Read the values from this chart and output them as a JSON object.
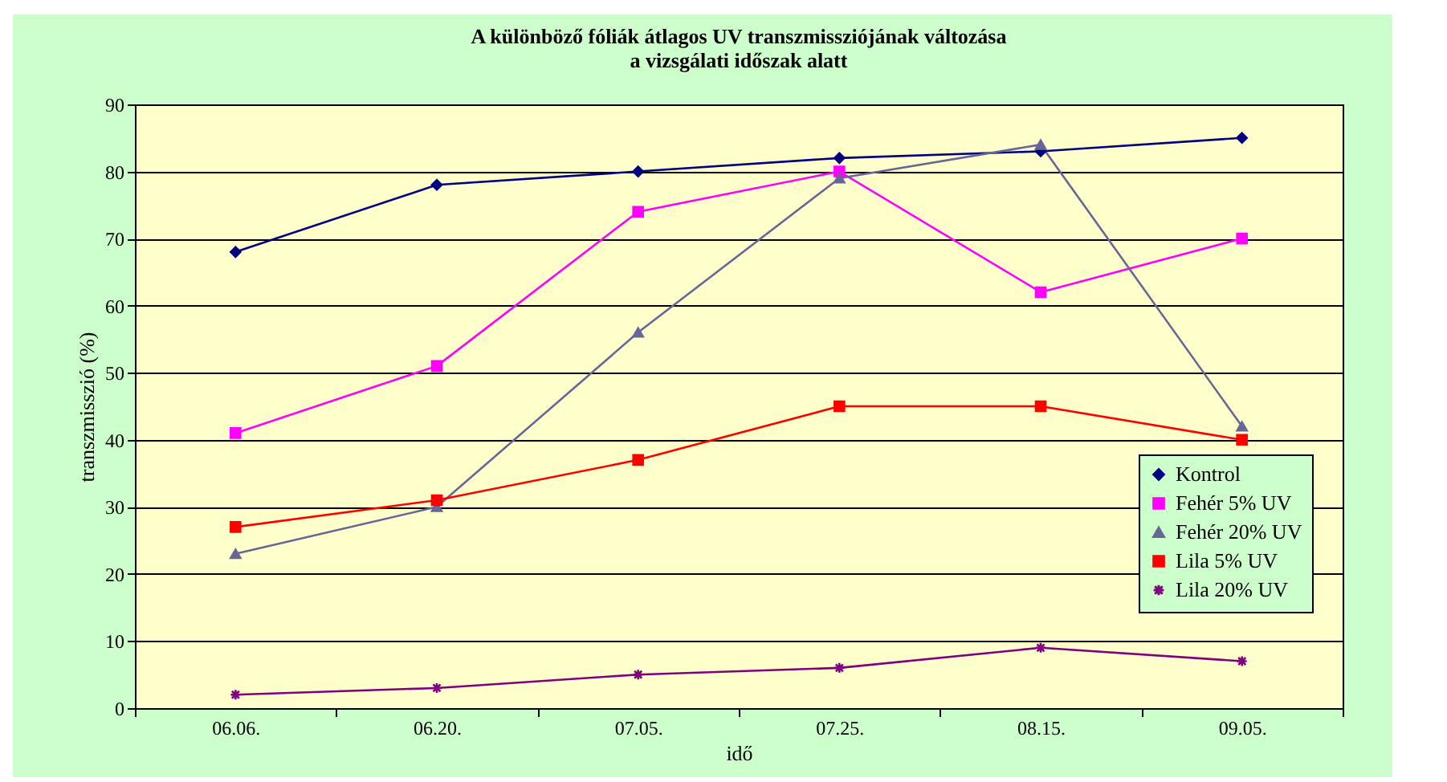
{
  "chart_data": {
    "type": "line",
    "title": "A különböző fóliák átlagos UV transzmissziójának változása\na vizsgálati időszak alatt",
    "xlabel": "idő",
    "ylabel": "transzmisszió (%)",
    "categories": [
      "06.06.",
      "06.20.",
      "07.05.",
      "07.25.",
      "08.15.",
      "09.05."
    ],
    "ylim": [
      0,
      90
    ],
    "yticks": [
      0,
      10,
      20,
      30,
      40,
      50,
      60,
      70,
      80,
      90
    ],
    "grid": "y",
    "legend": "bottom right",
    "line_style": "solid",
    "series": [
      {
        "name": "Kontrol",
        "color": "#000080",
        "marker": "diamond",
        "values": [
          68,
          78,
          80,
          82,
          83,
          85
        ]
      },
      {
        "name": "Fehér 5% UV",
        "color": "#ff00ff",
        "marker": "square",
        "values": [
          41,
          51,
          74,
          80,
          62,
          70
        ]
      },
      {
        "name": "Fehér 20% UV",
        "color": "#666699",
        "marker": "triangle",
        "values": [
          23,
          30,
          56,
          79,
          84,
          42
        ]
      },
      {
        "name": "Lila 5% UV",
        "color": "#ff0000",
        "marker": "square",
        "values": [
          27,
          31,
          37,
          45,
          45,
          40
        ]
      },
      {
        "name": "Lila 20% UV",
        "color": "#800080",
        "marker": "cross",
        "values": [
          2,
          3,
          5,
          6,
          9,
          7
        ]
      }
    ]
  }
}
